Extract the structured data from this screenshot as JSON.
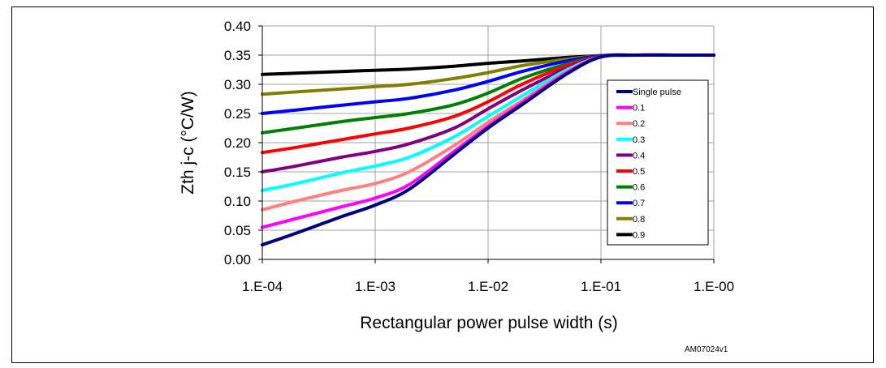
{
  "chart_data": {
    "type": "line",
    "xscale": "log",
    "xlim": [
      0.0001,
      1
    ],
    "x_ticks": [
      0.0001,
      0.001,
      0.01,
      0.1,
      1
    ],
    "x_tick_labels": [
      "1.E-04",
      "1.E-03",
      "1.E-02",
      "1.E-01",
      "1.E-00"
    ],
    "ylim": [
      0,
      0.4
    ],
    "y_ticks": [
      0,
      0.05,
      0.1,
      0.15,
      0.2,
      0.25,
      0.3,
      0.35,
      0.4
    ],
    "y_tick_labels": [
      "0.00",
      "0.05",
      "0.10",
      "0.15",
      "0.20",
      "0.25",
      "0.30",
      "0.35",
      "0.40"
    ],
    "xlabel": "Rectangular power pulse width (s)",
    "ylabel": "Zth j-c (°C/W)",
    "grid": true,
    "legend_position": "right",
    "figure_tag": "AM07024v1",
    "x": [
      0.0001,
      0.0002,
      0.0005,
      0.001,
      0.002,
      0.005,
      0.01,
      0.02,
      0.05,
      0.1,
      0.2,
      0.5,
      1
    ],
    "series": [
      {
        "name": "Single pulse",
        "color": "#00007f",
        "values": [
          0.025,
          0.045,
          0.073,
          0.093,
          0.12,
          0.18,
          0.225,
          0.265,
          0.318,
          0.347,
          0.35,
          0.35,
          0.35
        ]
      },
      {
        "name": "0.1",
        "color": "#ff00ff",
        "values": [
          0.055,
          0.07,
          0.09,
          0.105,
          0.128,
          0.185,
          0.228,
          0.268,
          0.32,
          0.347,
          0.35,
          0.35,
          0.35
        ]
      },
      {
        "name": "0.2",
        "color": "#ff8080",
        "values": [
          0.085,
          0.1,
          0.118,
          0.13,
          0.15,
          0.195,
          0.235,
          0.272,
          0.322,
          0.347,
          0.35,
          0.35,
          0.35
        ]
      },
      {
        "name": "0.3",
        "color": "#00ffff",
        "values": [
          0.118,
          0.13,
          0.148,
          0.16,
          0.175,
          0.21,
          0.245,
          0.28,
          0.325,
          0.347,
          0.35,
          0.35,
          0.35
        ]
      },
      {
        "name": "0.4",
        "color": "#800080",
        "values": [
          0.15,
          0.16,
          0.175,
          0.185,
          0.198,
          0.225,
          0.258,
          0.29,
          0.328,
          0.348,
          0.35,
          0.35,
          0.35
        ]
      },
      {
        "name": "0.5",
        "color": "#ff0000",
        "values": [
          0.183,
          0.192,
          0.205,
          0.215,
          0.225,
          0.245,
          0.27,
          0.3,
          0.332,
          0.348,
          0.35,
          0.35,
          0.35
        ]
      },
      {
        "name": "0.6",
        "color": "#008000",
        "values": [
          0.217,
          0.225,
          0.236,
          0.243,
          0.25,
          0.265,
          0.285,
          0.31,
          0.335,
          0.348,
          0.35,
          0.35,
          0.35
        ]
      },
      {
        "name": "0.7",
        "color": "#0000ff",
        "values": [
          0.25,
          0.256,
          0.264,
          0.27,
          0.276,
          0.29,
          0.305,
          0.322,
          0.34,
          0.349,
          0.35,
          0.35,
          0.35
        ]
      },
      {
        "name": "0.8",
        "color": "#808000",
        "values": [
          0.283,
          0.287,
          0.292,
          0.296,
          0.3,
          0.31,
          0.32,
          0.332,
          0.343,
          0.349,
          0.35,
          0.35,
          0.35
        ]
      },
      {
        "name": "0.9",
        "color": "#000000",
        "values": [
          0.317,
          0.319,
          0.322,
          0.324,
          0.326,
          0.331,
          0.336,
          0.34,
          0.346,
          0.349,
          0.35,
          0.35,
          0.35
        ]
      }
    ]
  }
}
